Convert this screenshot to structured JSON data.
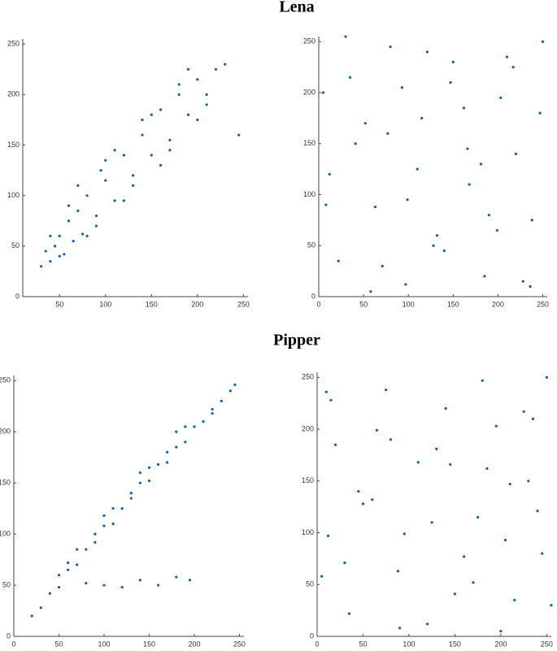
{
  "chart_data": [
    {
      "type": "scatter",
      "title": "Lena",
      "color": "#0b62b0",
      "x": [
        30,
        35,
        40,
        45,
        50,
        55,
        60,
        65,
        70,
        75,
        80,
        90,
        100,
        110,
        120,
        130,
        140,
        150,
        160,
        170,
        180,
        190,
        200,
        210,
        220,
        230,
        40,
        60,
        80,
        100,
        120,
        140,
        160,
        180,
        200,
        50,
        70,
        90,
        110,
        130,
        150,
        170,
        190,
        210,
        245,
        95
      ],
      "values": [
        30,
        45,
        35,
        50,
        60,
        42,
        75,
        55,
        85,
        62,
        100,
        80,
        115,
        95,
        140,
        120,
        160,
        140,
        185,
        155,
        200,
        180,
        215,
        200,
        225,
        230,
        60,
        90,
        60,
        135,
        95,
        175,
        130,
        210,
        175,
        40,
        110,
        70,
        145,
        110,
        180,
        145,
        225,
        190,
        160,
        125
      ],
      "xlim": [
        10,
        255
      ],
      "ylim": [
        0,
        255
      ],
      "xticks": [
        50,
        100,
        150,
        200,
        250
      ],
      "yticks": [
        0,
        50,
        100,
        150,
        200,
        250
      ]
    },
    {
      "type": "scatter",
      "color": "#0b62b0",
      "x": [
        5,
        22,
        41,
        63,
        80,
        97,
        115,
        132,
        150,
        168,
        185,
        203,
        220,
        238,
        250,
        12,
        35,
        58,
        77,
        99,
        121,
        140,
        162,
        181,
        199,
        217,
        236,
        8,
        30,
        52,
        71,
        93,
        110,
        128,
        147,
        166,
        190,
        210,
        228,
        247
      ],
      "values": [
        200,
        35,
        150,
        88,
        245,
        12,
        175,
        60,
        230,
        110,
        20,
        195,
        140,
        75,
        250,
        120,
        215,
        5,
        160,
        95,
        240,
        45,
        185,
        130,
        65,
        225,
        10,
        90,
        255,
        170,
        30,
        205,
        125,
        50,
        210,
        145,
        80,
        235,
        15,
        180
      ],
      "xlim": [
        0,
        255
      ],
      "ylim": [
        0,
        255
      ],
      "xticks": [
        0,
        50,
        100,
        150,
        200,
        250
      ],
      "yticks": [
        0,
        50,
        100,
        150,
        200,
        250
      ]
    },
    {
      "type": "scatter",
      "title": "Pipper",
      "color": "#0b62b0",
      "x": [
        20,
        30,
        40,
        50,
        60,
        70,
        80,
        90,
        100,
        110,
        120,
        130,
        140,
        150,
        160,
        170,
        180,
        190,
        200,
        210,
        220,
        230,
        240,
        245,
        50,
        70,
        90,
        110,
        130,
        150,
        170,
        190,
        80,
        100,
        120,
        140,
        160,
        180,
        195,
        60,
        100,
        140,
        180,
        220
      ],
      "values": [
        20,
        28,
        42,
        48,
        65,
        70,
        85,
        92,
        108,
        110,
        125,
        135,
        150,
        152,
        168,
        170,
        185,
        190,
        205,
        210,
        222,
        230,
        240,
        246,
        60,
        85,
        100,
        125,
        140,
        165,
        180,
        205,
        52,
        50,
        48,
        55,
        50,
        58,
        55,
        72,
        118,
        160,
        200,
        218
      ],
      "xlim": [
        0,
        255
      ],
      "ylim": [
        0,
        255
      ],
      "xticks": [
        0,
        50,
        100,
        150,
        200,
        250
      ],
      "yticks": [
        0,
        50,
        100,
        150,
        200,
        250
      ]
    },
    {
      "type": "scatter",
      "color": "#0b62b0",
      "x": [
        200,
        35,
        150,
        88,
        245,
        12,
        175,
        60,
        230,
        110,
        20,
        195,
        140,
        75,
        250,
        120,
        215,
        5,
        160,
        95,
        240,
        45,
        185,
        130,
        65,
        225,
        10,
        90,
        255,
        170,
        30,
        205,
        125,
        50,
        210,
        145,
        80,
        235,
        15,
        180
      ],
      "values": [
        5,
        22,
        41,
        63,
        80,
        97,
        115,
        132,
        150,
        168,
        185,
        203,
        220,
        238,
        250,
        12,
        35,
        58,
        77,
        99,
        121,
        140,
        162,
        181,
        199,
        217,
        236,
        8,
        30,
        52,
        71,
        93,
        110,
        128,
        147,
        166,
        190,
        210,
        228,
        247
      ],
      "xlim": [
        0,
        255
      ],
      "ylim": [
        0,
        255
      ],
      "xticks": [
        0,
        50,
        100,
        150,
        200,
        250
      ],
      "yticks": [
        0,
        50,
        100,
        150,
        200,
        250
      ]
    }
  ]
}
